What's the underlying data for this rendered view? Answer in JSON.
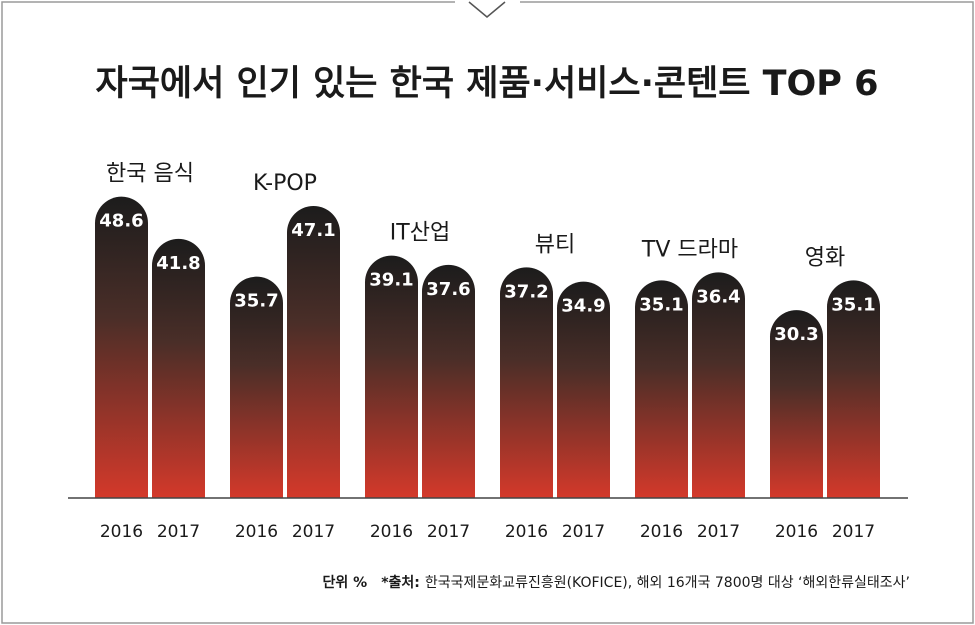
{
  "chart_data": {
    "type": "bar",
    "title": "자국에서 인기 있는 한국 제품·서비스·콘텐트 TOP 6",
    "categories": [
      "한국 음식",
      "K-POP",
      "IT산업",
      "뷰티",
      "TV 드라마",
      "영화"
    ],
    "series": [
      {
        "name": "2016",
        "values": [
          48.6,
          35.7,
          39.1,
          37.2,
          35.1,
          30.3
        ]
      },
      {
        "name": "2017",
        "values": [
          41.8,
          47.1,
          37.6,
          34.9,
          36.4,
          35.1
        ]
      }
    ],
    "value_labels": {
      "2016": [
        "48.6",
        "35.7",
        "39.1",
        "37.2",
        "35.1",
        "30.3"
      ],
      "2017": [
        "41.8",
        "47.1",
        "37.6",
        "34.9",
        "36.4",
        "35.1"
      ]
    },
    "ylim": [
      0,
      50
    ],
    "grid": false,
    "legend": "none",
    "colors": {
      "bar_top": "#1c1c1c",
      "bar_bottom": "#d4392a",
      "frame": "#9a9a9a"
    }
  },
  "footnote": {
    "unit_label": "단위 %",
    "source_label": "*출처:",
    "source_text": "한국국제문화교류진흥원(KOFICE), 해외 16개국 7800명 대상 ‘해외한류실태조사’"
  }
}
